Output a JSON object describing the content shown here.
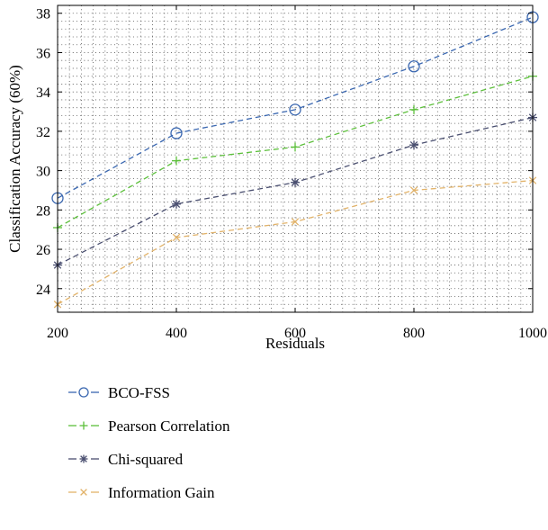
{
  "chart_data": {
    "type": "line",
    "title": "",
    "xlabel": "Residuals",
    "ylabel": "Classification Accuracy (60%)",
    "x": [
      200,
      400,
      600,
      800,
      1000
    ],
    "xticks": [
      200,
      400,
      600,
      800,
      1000
    ],
    "yticks": [
      24,
      26,
      28,
      30,
      32,
      34,
      36,
      38
    ],
    "xlim": [
      200,
      1000
    ],
    "ylim": [
      22.8,
      38.4
    ],
    "grid": true,
    "legend_position": "below",
    "series": [
      {
        "name": "BCO-FSS",
        "color": "#3a67b0",
        "marker": "circle",
        "marker_glyph": "⊖",
        "values": [
          28.6,
          31.9,
          33.1,
          35.3,
          37.8
        ]
      },
      {
        "name": "Pearson Correlation",
        "color": "#5cbf3b",
        "marker": "plus",
        "marker_glyph": "+",
        "values": [
          27.1,
          30.5,
          31.2,
          33.1,
          34.8
        ]
      },
      {
        "name": "Chi-squared",
        "color": "#4a4f70",
        "marker": "star",
        "marker_glyph": "∗",
        "values": [
          25.2,
          28.3,
          29.4,
          31.3,
          32.7
        ]
      },
      {
        "name": "Information Gain",
        "color": "#e2b36a",
        "marker": "x",
        "marker_glyph": "×",
        "values": [
          23.2,
          26.6,
          27.4,
          29.0,
          29.5
        ]
      }
    ]
  }
}
